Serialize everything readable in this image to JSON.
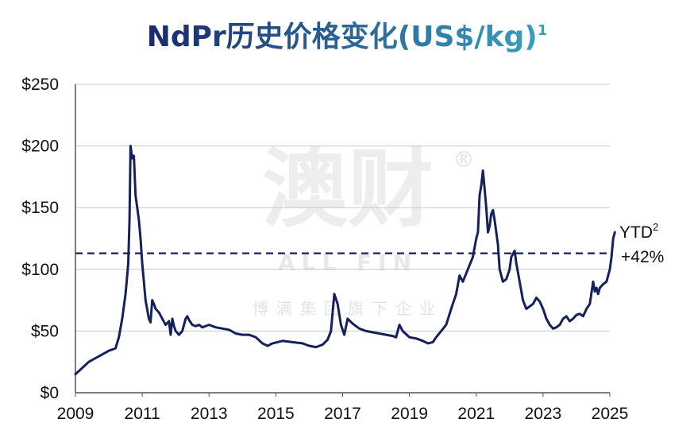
{
  "chart_data": {
    "type": "line",
    "title": "NdPr历史价格变化(US$/kg)",
    "title_superscript": "1",
    "xlabel": "",
    "ylabel": "",
    "x_ticks": [
      "2009",
      "2011",
      "2013",
      "2015",
      "2017",
      "2019",
      "2021",
      "2023",
      "2025"
    ],
    "y_ticks": [
      "$0",
      "$50",
      "$100",
      "$150",
      "$200",
      "$250"
    ],
    "xlim": [
      2009,
      2025
    ],
    "ylim": [
      0,
      250
    ],
    "grid": true,
    "legend": "none",
    "colors": {
      "line": "#16215c",
      "reference_line": "#16215c",
      "title_start": "#1b2a6b",
      "title_end": "#3aa0c0"
    },
    "series": [
      {
        "x": [
          2009.0,
          2009.2,
          2009.4,
          2009.6,
          2009.8,
          2010.0,
          2010.2,
          2010.3,
          2010.4,
          2010.5,
          2010.55,
          2010.58,
          2010.62,
          2010.65,
          2010.7,
          2010.75,
          2010.8,
          2010.85,
          2010.9,
          2010.95,
          2011.0,
          2011.05,
          2011.1,
          2011.2,
          2011.25,
          2011.3,
          2011.35,
          2011.4,
          2011.5,
          2011.6,
          2011.7,
          2011.8,
          2011.85,
          2011.9,
          2011.95,
          2012.0,
          2012.1,
          2012.2,
          2012.3,
          2012.35,
          2012.4,
          2012.5,
          2012.6,
          2012.7,
          2012.8,
          2013.0,
          2013.2,
          2013.4,
          2013.6,
          2013.8,
          2014.0,
          2014.2,
          2014.4,
          2014.6,
          2014.75,
          2014.9,
          2015.2,
          2015.5,
          2015.8,
          2016.0,
          2016.2,
          2016.4,
          2016.55,
          2016.65,
          2016.75,
          2016.85,
          2016.95,
          2017.05,
          2017.15,
          2017.3,
          2017.5,
          2017.7,
          2017.9,
          2018.1,
          2018.3,
          2018.5,
          2018.6,
          2018.7,
          2018.8,
          2019.0,
          2019.2,
          2019.4,
          2019.55,
          2019.7,
          2019.8,
          2019.95,
          2020.1,
          2020.25,
          2020.4,
          2020.5,
          2020.6,
          2020.75,
          2020.9,
          2021.0,
          2021.05,
          2021.1,
          2021.15,
          2021.2,
          2021.25,
          2021.3,
          2021.35,
          2021.4,
          2021.45,
          2021.5,
          2021.55,
          2021.65,
          2021.7,
          2021.8,
          2021.9,
          2022.0,
          2022.05,
          2022.15,
          2022.2,
          2022.3,
          2022.4,
          2022.5,
          2022.6,
          2022.7,
          2022.8,
          2022.9,
          2023.0,
          2023.1,
          2023.2,
          2023.3,
          2023.4,
          2023.5,
          2023.6,
          2023.7,
          2023.8,
          2023.9,
          2024.0,
          2024.1,
          2024.2,
          2024.3,
          2024.4,
          2024.5,
          2024.55,
          2024.6,
          2024.65,
          2024.7,
          2024.8,
          2024.9,
          2024.95,
          2025.0,
          2025.05,
          2025.1,
          2025.15
        ],
        "y": [
          15,
          20,
          25,
          28,
          31,
          34,
          36,
          45,
          60,
          80,
          95,
          105,
          140,
          200,
          190,
          192,
          160,
          150,
          140,
          125,
          105,
          90,
          75,
          60,
          57,
          75,
          72,
          68,
          65,
          60,
          55,
          58,
          47,
          60,
          54,
          50,
          47,
          50,
          60,
          62,
          59,
          55,
          54,
          55,
          53,
          55,
          53,
          52,
          51,
          48,
          47,
          47,
          45,
          40,
          38,
          40,
          42,
          41,
          40,
          38,
          37,
          39,
          43,
          50,
          80,
          72,
          55,
          47,
          60,
          56,
          52,
          50,
          49,
          48,
          47,
          46,
          45,
          55,
          50,
          45,
          44,
          42,
          40,
          41,
          45,
          50,
          55,
          68,
          80,
          95,
          90,
          100,
          110,
          125,
          130,
          160,
          168,
          180,
          165,
          150,
          130,
          135,
          145,
          148,
          140,
          120,
          100,
          90,
          92,
          100,
          110,
          115,
          105,
          90,
          75,
          68,
          70,
          72,
          77,
          74,
          68,
          60,
          55,
          52,
          53,
          55,
          60,
          62,
          58,
          60,
          63,
          64,
          62,
          68,
          72,
          90,
          82,
          85,
          80,
          85,
          88,
          90,
          95,
          100,
          110,
          125,
          130
        ]
      }
    ],
    "reference_line": {
      "value": 113,
      "style": "dashed"
    },
    "annotation": {
      "text": "YTD",
      "superscript": "2",
      "line2": "+42%"
    }
  },
  "watermark": {
    "main": "澳财",
    "registered": "®",
    "latin": "ALL FIN",
    "subtitle": "博满集团旗下企业"
  }
}
